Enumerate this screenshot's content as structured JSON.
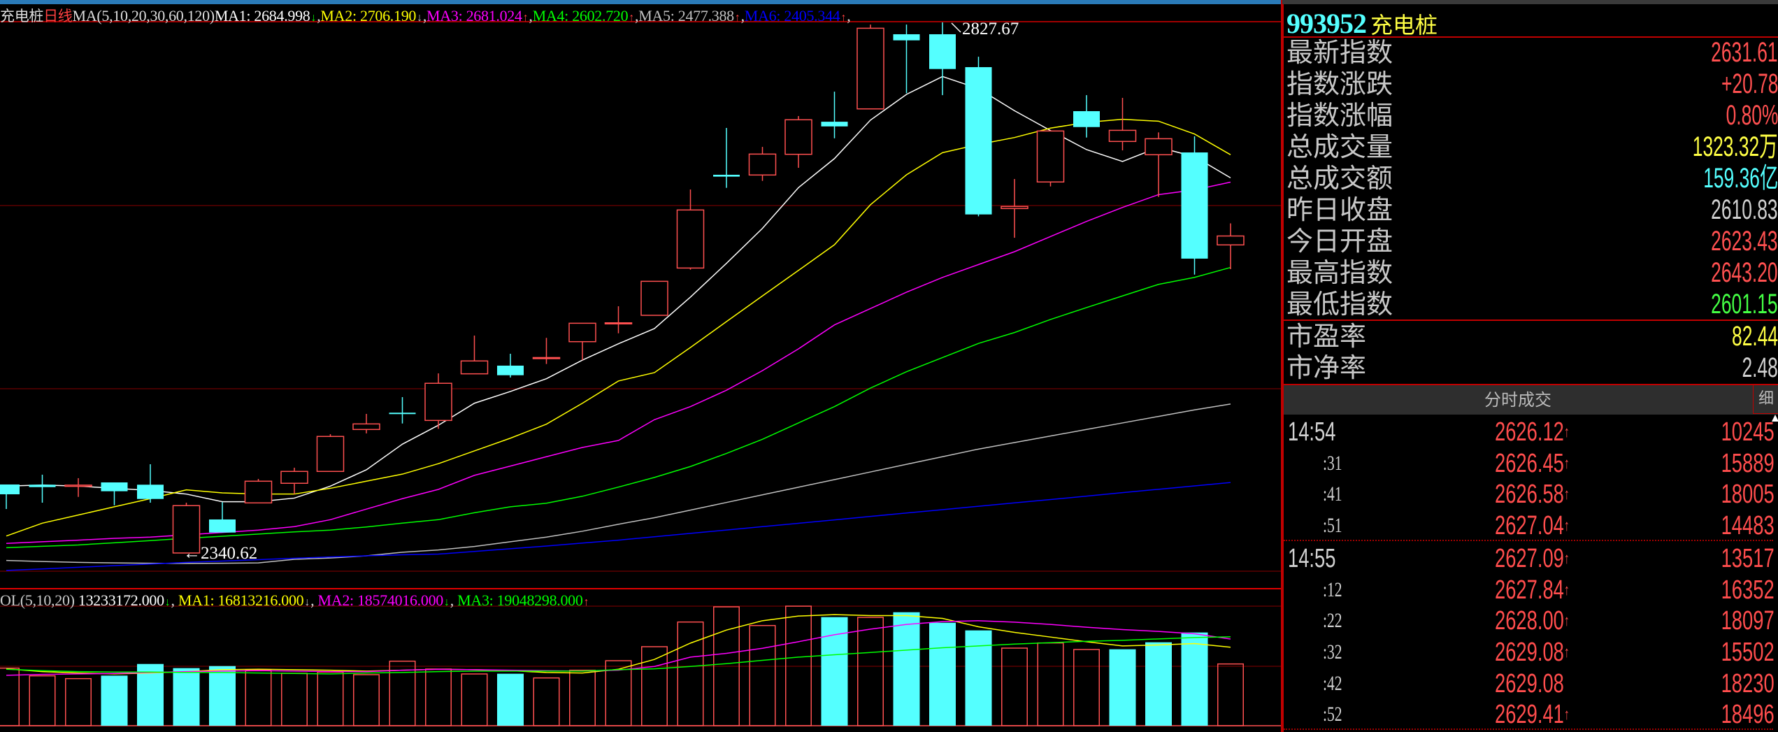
{
  "price_legend": {
    "title": "充电桩",
    "period": "日线",
    "params": "MA(5,10,20,30,60,120)",
    "items": [
      {
        "label": "MA1:",
        "value": "2684.998",
        "mark": "↓",
        "color": "#ffffff",
        "mark_color": "#00ff00"
      },
      {
        "label": "MA2:",
        "value": "2706.190",
        "mark": "↓",
        "color": "#ffff00",
        "mark_color": "#c0c0c0"
      },
      {
        "label": "MA3:",
        "value": "2681.024",
        "mark": "↑",
        "color": "#ff00ff",
        "mark_color": "#ff4040"
      },
      {
        "label": "MA4:",
        "value": "2602.720",
        "mark": "↑",
        "color": "#00ff00",
        "mark_color": "#ff4040"
      },
      {
        "label": "MA5:",
        "value": "2477.388",
        "mark": "↑",
        "color": "#c0c0c0",
        "mark_color": "#ff4040"
      },
      {
        "label": "MA6:",
        "value": "2405.344",
        "mark": "↑",
        "color": "#0000ff",
        "mark_color": "#ff4040"
      }
    ]
  },
  "volume_legend": {
    "params": "OL(5,10,20)",
    "value": "13233172.000",
    "value_mark": "↓",
    "items": [
      {
        "label": "MA1:",
        "value": "16813216.000",
        "mark": "↓",
        "color": "#ffff00",
        "mark_color": "#c0c0c0"
      },
      {
        "label": "MA2:",
        "value": "18574016.000",
        "mark": "↓",
        "color": "#ff00ff",
        "mark_color": "#00ff00"
      },
      {
        "label": "MA3:",
        "value": "19048298.000",
        "mark": "↑",
        "color": "#00ff00",
        "mark_color": "#ff4040"
      }
    ]
  },
  "annotations": {
    "high": "2827.67",
    "low_arrow": "←",
    "low": "2340.62"
  },
  "chart_data": [
    {
      "type": "candlestick",
      "title": "充电桩 日线",
      "ylim": [
        2323.9,
        2827.7
      ],
      "grid": true,
      "colors": {
        "up": "#ff5050",
        "down": "#54ffff",
        "grid": "#5a0000"
      },
      "open": [
        2403.5,
        2403.3,
        2401.8,
        2405.4,
        2403.3,
        2340.62,
        2371.4,
        2386.6,
        2404.6,
        2415.5,
        2454.0,
        2469.4,
        2462.3,
        2505.1,
        2512.6,
        2519.4,
        2534.6,
        2551.1,
        2558.8,
        2602.2,
        2687.8,
        2687.6,
        2706.6,
        2736.5,
        2748.3,
        2816.8,
        2816.8,
        2786.6,
        2656.8,
        2681.2,
        2746.2,
        2718.4,
        2706.2,
        2708.3,
        2623.43
      ],
      "high": [
        2403.5,
        2412.5,
        2409.3,
        2405.4,
        2422.1,
        2386.8,
        2387.3,
        2408.6,
        2418.9,
        2449.7,
        2468.3,
        2483.7,
        2505.5,
        2540.2,
        2523.5,
        2538.1,
        2551.5,
        2567.1,
        2590.0,
        2674.3,
        2730.8,
        2713.4,
        2741.7,
        2764.1,
        2825.7,
        2825.7,
        2827.67,
        2796.2,
        2683.9,
        2728.0,
        2760.9,
        2758.4,
        2726.7,
        2723.1,
        2643.2
      ],
      "low": [
        2381.0,
        2386.8,
        2392.1,
        2384.4,
        2386.8,
        2340.62,
        2359.4,
        2386.6,
        2394.7,
        2415.5,
        2450.4,
        2459.5,
        2454.6,
        2505.1,
        2501.7,
        2514.1,
        2517.7,
        2542.3,
        2558.8,
        2600.7,
        2675.8,
        2682.2,
        2694.2,
        2721.3,
        2748.3,
        2762.7,
        2760.9,
        2649.7,
        2630.0,
        2677.1,
        2722.0,
        2710.2,
        2667.5,
        2596.2,
        2601.15
      ],
      "close": [
        2394.5,
        2401.1,
        2402.9,
        2397.3,
        2390.2,
        2384.1,
        2359.4,
        2406.5,
        2415.5,
        2447.6,
        2459.1,
        2469.0,
        2496.4,
        2516.9,
        2503.8,
        2520.0,
        2551.5,
        2551.9,
        2590.0,
        2655.5,
        2686.1,
        2706.8,
        2738.3,
        2732.2,
        2822.3,
        2811.2,
        2784.9,
        2651.4,
        2658.7,
        2728.0,
        2731.6,
        2728.6,
        2720.9,
        2610.83,
        2631.61
      ],
      "series": [
        {
          "name": "MA1",
          "color": "#ffffff",
          "values": [
            2402,
            2403,
            2402,
            2400,
            2398,
            2394.7,
            2387.7,
            2387.7,
            2391,
            2402,
            2417,
            2440.5,
            2457.9,
            2478.1,
            2488.9,
            2500.6,
            2517.7,
            2532.7,
            2546.6,
            2575.5,
            2606.5,
            2638.6,
            2676,
            2702.7,
            2738,
            2761.6,
            2778,
            2766.9,
            2746.6,
            2728.4,
            2710.9,
            2700,
            2713,
            2704.5,
            2684.998
          ]
        },
        {
          "name": "MA2",
          "color": "#ffff00",
          "values": [
            2356.2,
            2368,
            2375.5,
            2383,
            2390.5,
            2398.6,
            2395.8,
            2394.7,
            2394.7,
            2400,
            2406.5,
            2413,
            2422.6,
            2434.3,
            2446,
            2458.9,
            2478.1,
            2498.5,
            2506.2,
            2529.3,
            2553,
            2576.6,
            2600,
            2623.6,
            2660.3,
            2687.8,
            2708.1,
            2715.6,
            2722,
            2730.6,
            2735.9,
            2738.7,
            2737,
            2725.2,
            2706.19
          ]
        },
        {
          "name": "MA3",
          "color": "#ff00ff",
          "values": [
            2349.4,
            2350.9,
            2352.4,
            2354.1,
            2355.2,
            2357.3,
            2359.4,
            2361.6,
            2364.8,
            2371.2,
            2380.9,
            2390.5,
            2399,
            2411.9,
            2420.4,
            2429,
            2437.5,
            2443.9,
            2463,
            2475,
            2490,
            2508,
            2528,
            2550,
            2565,
            2580,
            2593.6,
            2605.4,
            2617.2,
            2631.1,
            2645,
            2657.8,
            2669.6,
            2673.9,
            2681.024
          ]
        },
        {
          "name": "MA4",
          "color": "#00ff00",
          "values": [
            2345.5,
            2346.8,
            2348,
            2350,
            2352,
            2354.1,
            2356,
            2358,
            2360,
            2361.6,
            2364.5,
            2368,
            2371.2,
            2377.6,
            2383,
            2386.3,
            2392.7,
            2401.1,
            2410,
            2420,
            2432,
            2445,
            2460,
            2475,
            2492,
            2507,
            2520,
            2533,
            2543,
            2555,
            2565.9,
            2576.6,
            2587.2,
            2593.6,
            2602.72
          ]
        },
        {
          "name": "MA5",
          "color": "#c0c0c0",
          "values": [
            2333.8,
            2332.8,
            2332,
            2331.5,
            2331.2,
            2331,
            2331.2,
            2331.5,
            2334.8,
            2336,
            2338,
            2341.3,
            2343.4,
            2346.6,
            2350.9,
            2355.2,
            2360.6,
            2367,
            2373,
            2380,
            2387,
            2394,
            2401,
            2408,
            2415,
            2422,
            2429,
            2436,
            2442,
            2448,
            2454,
            2460,
            2466,
            2472,
            2477.388
          ]
        },
        {
          "name": "MA6",
          "color": "#0000ff",
          "values": [
            2324.6,
            2326,
            2327.5,
            2329,
            2330.5,
            2332,
            2333.2,
            2334.5,
            2335.8,
            2337,
            2338,
            2339,
            2339.6,
            2342,
            2344.5,
            2347,
            2349.7,
            2352.4,
            2355.5,
            2358.6,
            2361.7,
            2364.8,
            2367.9,
            2371,
            2374.2,
            2377.3,
            2380.4,
            2383.5,
            2386.6,
            2389.7,
            2392.8,
            2396,
            2399.1,
            2402.2,
            2405.344
          ]
        }
      ]
    },
    {
      "type": "bar",
      "title": "VOL(5,10,20)",
      "ylim": [
        0,
        25620000
      ],
      "colors": {
        "up": "#ff5050",
        "down": "#54ffff"
      },
      "values": [
        12340000,
        10690000,
        10090000,
        10740000,
        13230000,
        12340000,
        12780000,
        11890000,
        11240000,
        11490000,
        10940000,
        13830000,
        12140000,
        11090000,
        11140000,
        10240000,
        11890000,
        13930000,
        16930000,
        22220000,
        25470000,
        21470000,
        25620000,
        23270000,
        23220000,
        24320000,
        22070000,
        20430000,
        16630000,
        17730000,
        16330000,
        16380000,
        17880000,
        19980000,
        13233172
      ],
      "series": [
        {
          "name": "MA1",
          "color": "#ffff00",
          "values": [
            12200000,
            11600000,
            11300000,
            11100000,
            11300000,
            11600000,
            12000000,
            12100000,
            12000000,
            11900000,
            11700000,
            11900000,
            12100000,
            12000000,
            11800000,
            11400000,
            11300000,
            12100000,
            14200000,
            17700000,
            20500000,
            22500000,
            23500000,
            23800000,
            23600000,
            23600000,
            23000000,
            21200000,
            20000000,
            19000000,
            18000000,
            17100000,
            17300000,
            17600000,
            16813216
          ]
        },
        {
          "name": "MA2",
          "color": "#ff00ff",
          "values": [
            10800000,
            11000000,
            11100000,
            11200000,
            11400000,
            11600000,
            11700000,
            11800000,
            11700000,
            11600000,
            11600000,
            11900000,
            12100000,
            12000000,
            11900000,
            11800000,
            11700000,
            11900000,
            12700000,
            14700000,
            15500000,
            16600000,
            18000000,
            19500000,
            20700000,
            21700000,
            22300000,
            22500000,
            22200000,
            21700000,
            21100000,
            20600000,
            20200000,
            19700000,
            18574016
          ]
        },
        {
          "name": "MA3",
          "color": "#00ff00",
          "values": [
            12100000,
            11800000,
            11600000,
            11500000,
            11500000,
            11400000,
            11400000,
            11300000,
            11200000,
            11100000,
            11300000,
            11400000,
            11600000,
            11700000,
            11700000,
            11700000,
            11700000,
            12000000,
            12200000,
            12700000,
            13300000,
            14000000,
            14700000,
            15200000,
            15700000,
            16200000,
            16700000,
            17100000,
            17500000,
            17800000,
            18100000,
            18300000,
            18600000,
            18900000,
            19048298
          ]
        }
      ]
    }
  ],
  "quote_panel": {
    "code": "993952",
    "name": "充电桩",
    "rows": [
      {
        "label": "最新指数",
        "value": "2631.61",
        "color": "#ff5050"
      },
      {
        "label": "指数涨跌",
        "value": "+20.78",
        "color": "#ff5050"
      },
      {
        "label": "指数涨幅",
        "value": "0.80%",
        "color": "#ff5050"
      },
      {
        "label": "总成交量",
        "value": "1323.32万",
        "color": "#ffff44"
      },
      {
        "label": "总成交额",
        "value": "159.36亿",
        "color": "#54ffff"
      },
      {
        "label": "昨日收盘",
        "value": "2610.83",
        "color": "#d0d0d0"
      },
      {
        "label": "今日开盘",
        "value": "2623.43",
        "color": "#ff5050"
      },
      {
        "label": "最高指数",
        "value": "2643.20",
        "color": "#ff5050"
      },
      {
        "label": "最低指数",
        "value": "2601.15",
        "color": "#44ff44"
      }
    ],
    "ratios": [
      {
        "label": "市盈率",
        "value": "82.44",
        "color": "#ffff44"
      },
      {
        "label": "市净率",
        "value": "2.48",
        "color": "#d0d0d0"
      }
    ]
  },
  "ticks_panel": {
    "title": "分时成交",
    "detail_button": "细",
    "rows": [
      {
        "time": "14:54",
        "price": "2626.12",
        "arrow": "↑",
        "volume": "10245",
        "main": true
      },
      {
        "time": ":31",
        "price": "2626.45",
        "arrow": "↑",
        "volume": "15889",
        "main": false
      },
      {
        "time": ":41",
        "price": "2626.58",
        "arrow": "↑",
        "volume": "18005",
        "main": false
      },
      {
        "time": ":51",
        "price": "2627.04",
        "arrow": "↑",
        "volume": "14483",
        "main": false
      },
      {
        "time": "14:55",
        "price": "2627.09",
        "arrow": "↑",
        "volume": "13517",
        "main": true
      },
      {
        "time": ":12",
        "price": "2627.84",
        "arrow": "↑",
        "volume": "16352",
        "main": false
      },
      {
        "time": ":22",
        "price": "2628.00",
        "arrow": "↑",
        "volume": "18097",
        "main": false
      },
      {
        "time": ":32",
        "price": "2629.08",
        "arrow": "↑",
        "volume": "15502",
        "main": false
      },
      {
        "time": ":42",
        "price": "2629.08",
        "arrow": "",
        "volume": "18230",
        "main": false
      },
      {
        "time": ":52",
        "price": "2629.41",
        "arrow": "↑",
        "volume": "18496",
        "main": false
      }
    ]
  }
}
